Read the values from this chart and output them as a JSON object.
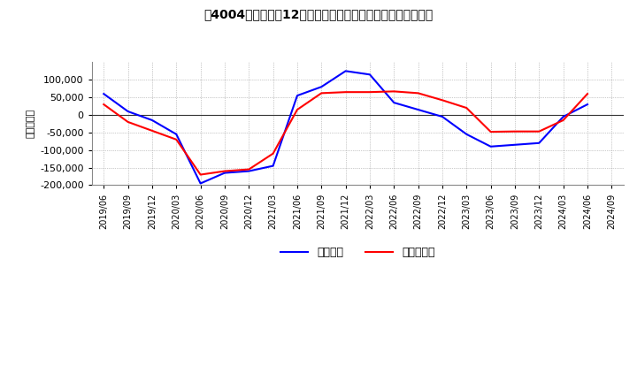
{
  "title": "［4004］　利益の12か月移動合計の対前年同期増減額の推移",
  "ylabel": "（百万円）",
  "legend_labels": [
    "経常利益",
    "当期純利益"
  ],
  "line_colors": [
    "#0000ff",
    "#ff0000"
  ],
  "ylim": [
    -200000,
    150000
  ],
  "yticks": [
    -200000,
    -150000,
    -100000,
    -50000,
    0,
    50000,
    100000
  ],
  "background_color": "#ffffff",
  "plot_bg_color": "#ffffff",
  "grid_color": "#aaaaaa",
  "dates": [
    "2019/06",
    "2019/09",
    "2019/12",
    "2020/03",
    "2020/06",
    "2020/09",
    "2020/12",
    "2021/03",
    "2021/06",
    "2021/09",
    "2021/12",
    "2022/03",
    "2022/06",
    "2022/09",
    "2022/12",
    "2023/03",
    "2023/06",
    "2023/09",
    "2023/12",
    "2024/03",
    "2024/06",
    "2024/09"
  ],
  "keijo_rieki": [
    60000,
    10000,
    -15000,
    -55000,
    -195000,
    -165000,
    -160000,
    -145000,
    55000,
    80000,
    125000,
    115000,
    35000,
    15000,
    -5000,
    -55000,
    -90000,
    -85000,
    -80000,
    -5000,
    30000,
    null
  ],
  "touki_junrieki": [
    30000,
    -20000,
    -45000,
    -70000,
    -170000,
    -160000,
    -155000,
    -110000,
    15000,
    62000,
    65000,
    65000,
    67000,
    62000,
    42000,
    20000,
    -48000,
    -47000,
    -47000,
    -15000,
    60000,
    null
  ]
}
